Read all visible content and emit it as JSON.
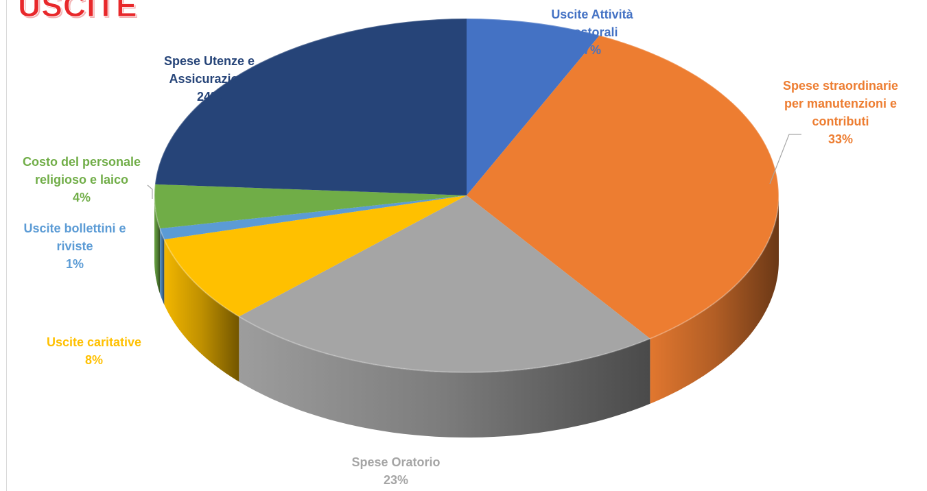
{
  "title": "USCITE",
  "chart_data": {
    "type": "pie",
    "title": "USCITE",
    "slices": [
      {
        "label_lines": [
          "Uscite Attività",
          "pastorali"
        ],
        "value": 7,
        "pct_label": "7%",
        "color": "#4472c4",
        "label_color": "#4472c4"
      },
      {
        "label_lines": [
          "Spese straordinarie",
          "per manutenzioni e",
          "contributi"
        ],
        "value": 33,
        "pct_label": "33%",
        "color": "#ed7d31",
        "label_color": "#ed7d31"
      },
      {
        "label_lines": [
          "Spese Oratorio"
        ],
        "value": 23,
        "pct_label": "23%",
        "color": "#a5a5a5",
        "label_color": "#a5a5a5"
      },
      {
        "label_lines": [
          "Uscite caritative"
        ],
        "value": 8,
        "pct_label": "8%",
        "color": "#ffc000",
        "label_color": "#ffc000"
      },
      {
        "label_lines": [
          "Uscite bollettini e",
          "riviste"
        ],
        "value": 1,
        "pct_label": "1%",
        "color": "#5b9bd5",
        "label_color": "#5b9bd5"
      },
      {
        "label_lines": [
          "Costo del personale",
          "religioso e laico"
        ],
        "value": 4,
        "pct_label": "4%",
        "color": "#70ad47",
        "label_color": "#70ad47"
      },
      {
        "label_lines": [
          "Spese Utenze e",
          "Assicurazioni"
        ],
        "value": 24,
        "pct_label": "24%",
        "color": "#264478",
        "label_color": "#264478"
      }
    ],
    "legend": "none",
    "style": "3d-pie"
  }
}
